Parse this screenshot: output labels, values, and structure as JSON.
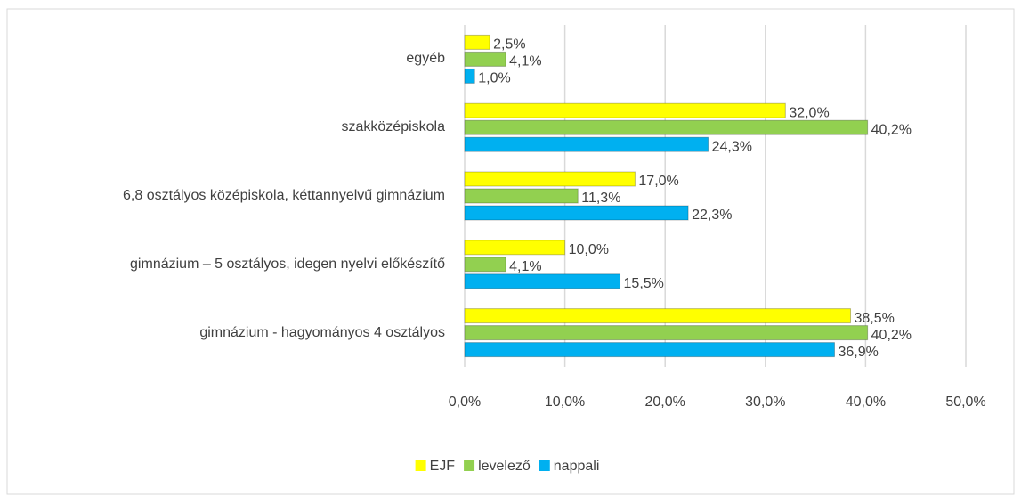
{
  "chart_data": {
    "type": "hbar",
    "categories": [
      "egyéb",
      "szakközépiskola",
      "6,8 osztályos középiskola, kéttannyelvű gimnázium",
      "gimnázium – 5 osztályos, idegen nyelvi előkészítő",
      "gimnázium - hagyományos 4 osztályos"
    ],
    "series": [
      {
        "name": "EJF",
        "color": "#ffff00",
        "values": [
          2.5,
          32.0,
          17.0,
          10.0,
          38.5
        ],
        "value_labels": [
          "2,5%",
          "32,0%",
          "17,0%",
          "10,0%",
          "38,5%"
        ]
      },
      {
        "name": "levelező",
        "color": "#92d050",
        "values": [
          4.1,
          40.2,
          11.3,
          4.1,
          40.2
        ],
        "value_labels": [
          "4,1%",
          "40,2%",
          "11,3%",
          "4,1%",
          "40,2%"
        ]
      },
      {
        "name": "nappali",
        "color": "#00b0f0",
        "values": [
          1.0,
          24.3,
          22.3,
          15.5,
          36.9
        ],
        "value_labels": [
          "1,0%",
          "24,3%",
          "22,3%",
          "15,5%",
          "36,9%"
        ]
      }
    ],
    "xlim": [
      0,
      50
    ],
    "xticks": [
      {
        "value": 0,
        "label": "0,0%"
      },
      {
        "value": 10,
        "label": "10,0%"
      },
      {
        "value": 20,
        "label": "20,0%"
      },
      {
        "value": 30,
        "label": "30,0%"
      },
      {
        "value": 40,
        "label": "40,0%"
      },
      {
        "value": 50,
        "label": "50,0%"
      }
    ],
    "grid": true,
    "legend": "bottom"
  }
}
